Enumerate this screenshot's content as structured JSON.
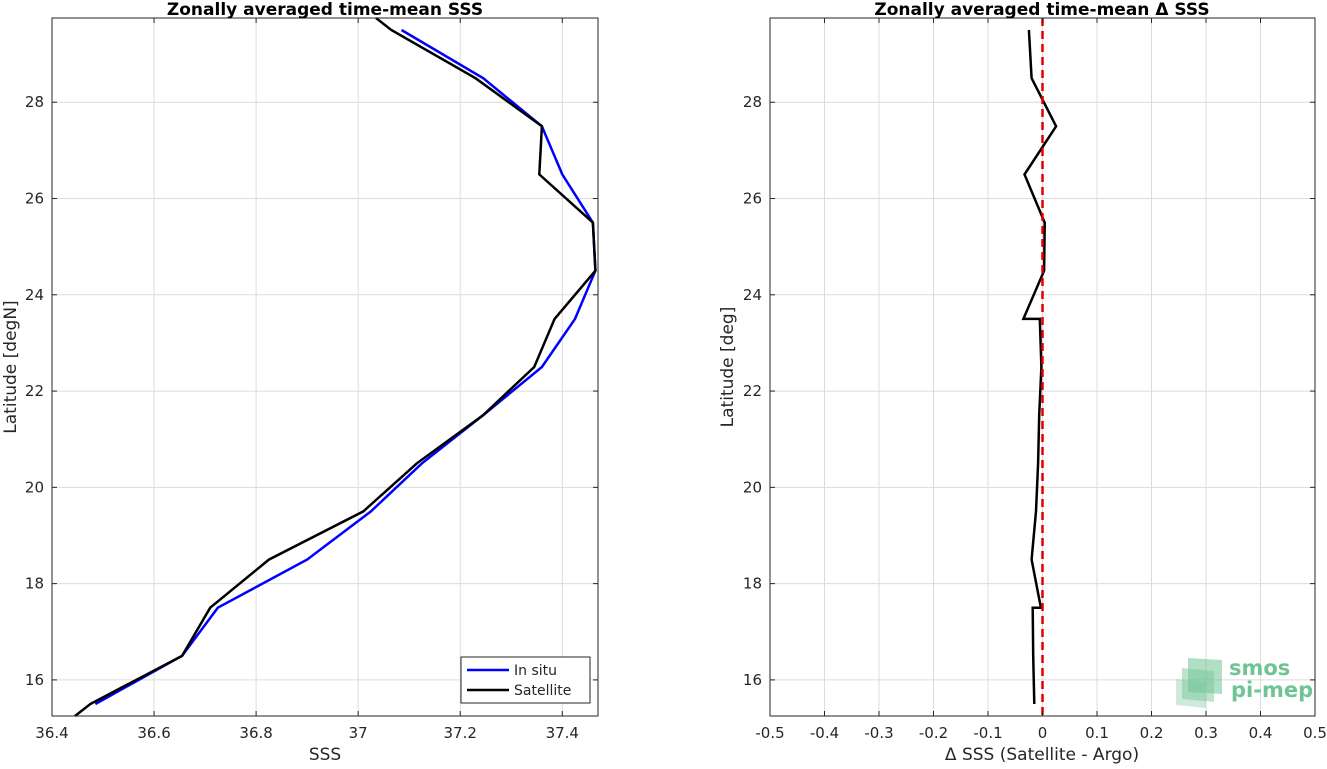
{
  "chart_data": [
    {
      "type": "line",
      "title": "Zonally averaged time-mean SSS",
      "xlabel": "SSS",
      "ylabel": "Latitude [degN]",
      "xlim": [
        36.4,
        37.47
      ],
      "ylim": [
        15.25,
        29.75
      ],
      "xticks": [
        "36.4",
        "36.6",
        "36.8",
        "37",
        "37.2",
        "37.4"
      ],
      "yticks": [
        "16",
        "18",
        "20",
        "22",
        "24",
        "26",
        "28"
      ],
      "grid": true,
      "legend": "bottom-right",
      "series": [
        {
          "name": "In situ",
          "color": "#0000ff",
          "x": [
            36.485,
            36.655,
            36.725,
            36.9,
            37.025,
            37.125,
            37.245,
            37.36,
            37.425,
            37.465,
            37.46,
            37.4,
            37.36,
            37.245,
            37.085
          ],
          "y": [
            15.5,
            16.5,
            17.5,
            18.5,
            19.5,
            20.5,
            21.5,
            22.5,
            23.5,
            24.5,
            25.5,
            26.5,
            27.5,
            28.5,
            29.5
          ]
        },
        {
          "name": "Satellite",
          "color": "#000000",
          "x": [
            36.445,
            36.475,
            36.655,
            36.71,
            36.825,
            37.01,
            37.115,
            37.245,
            37.345,
            37.385,
            37.465,
            37.46,
            37.355,
            37.36,
            37.23,
            37.065,
            37.035
          ],
          "y": [
            15.25,
            15.5,
            16.5,
            17.5,
            18.5,
            19.5,
            20.5,
            21.5,
            22.5,
            23.5,
            24.5,
            25.5,
            26.5,
            27.5,
            28.5,
            29.5,
            29.75
          ]
        }
      ]
    },
    {
      "type": "line",
      "title": "Zonally averaged time-mean Δ SSS",
      "xlabel": "Δ SSS (Satellite - Argo)",
      "ylabel": "Latitude [deg]",
      "xlim": [
        -0.5,
        0.5
      ],
      "ylim": [
        15.25,
        29.75
      ],
      "xticks": [
        "-0.5",
        "-0.4",
        "-0.3",
        "-0.2",
        "-0.1",
        "0",
        "0.1",
        "0.2",
        "0.3",
        "0.4",
        "0.5"
      ],
      "yticks": [
        "16",
        "18",
        "20",
        "22",
        "24",
        "26",
        "28"
      ],
      "grid": true,
      "reference_line": {
        "x": 0,
        "color": "#e00000",
        "style": "dashed"
      },
      "series": [
        {
          "color": "#000000",
          "x": [
            -0.015,
            -0.017,
            -0.018,
            -0.018,
            -0.003,
            -0.02,
            -0.012,
            -0.008,
            -0.006,
            -0.002,
            -0.005,
            -0.035,
            0.003,
            0.004,
            -0.033,
            0.025,
            -0.02,
            -0.025
          ],
          "y": [
            15.5,
            16.5,
            17.5,
            17.5,
            17.5,
            18.5,
            19.5,
            20.5,
            21.5,
            22.5,
            23.5,
            23.5,
            24.5,
            25.5,
            26.5,
            27.5,
            28.5,
            29.5
          ]
        }
      ]
    }
  ],
  "logo": {
    "line1": "smos",
    "line2": "pi-mep",
    "color": "#6fc494"
  }
}
